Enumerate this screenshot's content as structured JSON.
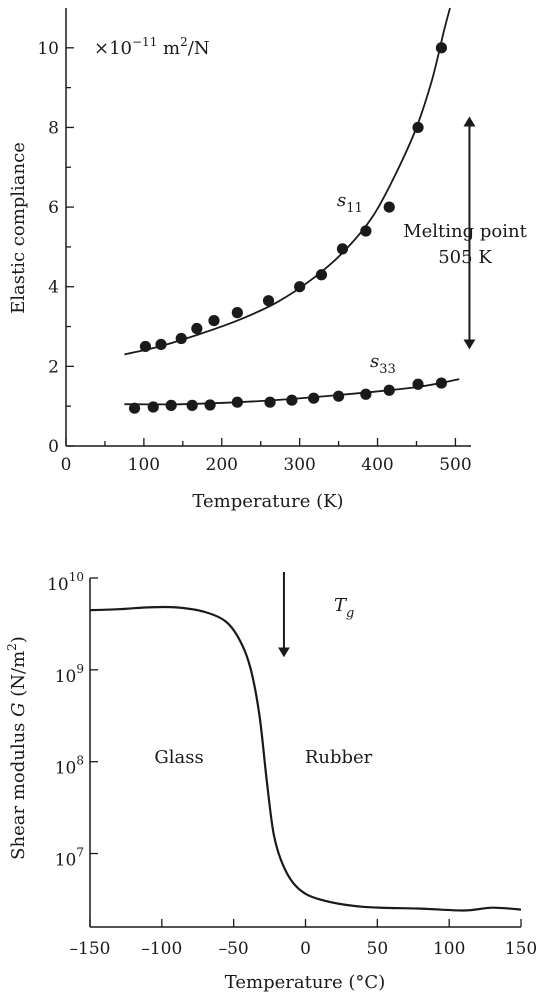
{
  "chart_data": [
    {
      "type": "scatter",
      "title": "",
      "xlabel": "Temperature (K)",
      "ylabel": "Elastic compliance",
      "xlim": [
        0,
        520
      ],
      "ylim": [
        0,
        11
      ],
      "xticks": [
        0,
        100,
        200,
        300,
        400,
        500
      ],
      "xtick_labels": [
        "0",
        "100",
        "200",
        "300",
        "400",
        "500"
      ],
      "yticks": [
        0,
        2,
        4,
        6,
        8,
        10
      ],
      "ytick_labels": [
        "0",
        "2",
        "4",
        "6",
        "8",
        "10"
      ],
      "units_note": {
        "prefix": "×10",
        "exp": "−11",
        "unit": " m",
        "unit_exp": "2",
        "suffix": "/N"
      },
      "series": [
        {
          "name": "s11",
          "label_base": "s",
          "label_sub": "11",
          "points": [
            [
              102,
              2.5
            ],
            [
              122,
              2.55
            ],
            [
              148,
              2.7
            ],
            [
              168,
              2.95
            ],
            [
              190,
              3.15
            ],
            [
              220,
              3.35
            ],
            [
              260,
              3.65
            ],
            [
              300,
              4.0
            ],
            [
              328,
              4.3
            ],
            [
              355,
              4.95
            ],
            [
              385,
              5.4
            ],
            [
              415,
              6.0
            ],
            [
              452,
              8.0
            ],
            [
              482,
              10.0
            ]
          ],
          "curve": [
            [
              75,
              2.3
            ],
            [
              120,
              2.5
            ],
            [
              170,
              2.8
            ],
            [
              220,
              3.15
            ],
            [
              270,
              3.6
            ],
            [
              320,
              4.25
            ],
            [
              360,
              4.95
            ],
            [
              395,
              5.8
            ],
            [
              425,
              6.9
            ],
            [
              450,
              8.0
            ],
            [
              470,
              9.2
            ],
            [
              485,
              10.4
            ],
            [
              493,
              11.0
            ]
          ]
        },
        {
          "name": "s33",
          "label_base": "s",
          "label_sub": "33",
          "points": [
            [
              88,
              0.95
            ],
            [
              112,
              0.98
            ],
            [
              135,
              1.02
            ],
            [
              162,
              1.02
            ],
            [
              185,
              1.03
            ],
            [
              220,
              1.1
            ],
            [
              262,
              1.1
            ],
            [
              290,
              1.15
            ],
            [
              318,
              1.2
            ],
            [
              350,
              1.25
            ],
            [
              385,
              1.3
            ],
            [
              415,
              1.4
            ],
            [
              452,
              1.55
            ],
            [
              482,
              1.58
            ]
          ],
          "curve": [
            [
              75,
              1.05
            ],
            [
              150,
              1.05
            ],
            [
              250,
              1.13
            ],
            [
              350,
              1.28
            ],
            [
              450,
              1.48
            ],
            [
              505,
              1.68
            ]
          ]
        }
      ],
      "annotation": {
        "line1": "Melting point",
        "line2": "505 K",
        "arrow_x": 518,
        "arrow_y_top": 8.4,
        "arrow_y_bottom": 2.3
      },
      "grid": false,
      "legend": "none"
    },
    {
      "type": "line",
      "title": "",
      "xlabel": "Temperature (°C)",
      "ylabel_text": "Shear modulus ",
      "ylabel_var": "G",
      "ylabel_unit": " (N/m",
      "ylabel_unit_exp": "2",
      "ylabel_close": ")",
      "xlim": [
        -150,
        150
      ],
      "ylim_log10": [
        6.2,
        10
      ],
      "log_scale_y": true,
      "xticks": [
        -150,
        -100,
        -50,
        0,
        50,
        100,
        150
      ],
      "xtick_labels": [
        "–150",
        "–100",
        "–50",
        "0",
        "50",
        "100",
        "150"
      ],
      "yticks_log10": [
        7,
        8,
        9,
        10
      ],
      "ytick_labels": [
        {
          "base": "10",
          "exp": "7"
        },
        {
          "base": "10",
          "exp": "8"
        },
        {
          "base": "10",
          "exp": "9"
        },
        {
          "base": "10",
          "exp": "10"
        }
      ],
      "series": [
        {
          "points": [
            [
              -150,
              9.65
            ],
            [
              -130,
              9.66
            ],
            [
              -110,
              9.68
            ],
            [
              -90,
              9.68
            ],
            [
              -70,
              9.63
            ],
            [
              -55,
              9.52
            ],
            [
              -45,
              9.3
            ],
            [
              -38,
              9.0
            ],
            [
              -32,
              8.5
            ],
            [
              -27,
              7.8
            ],
            [
              -22,
              7.2
            ],
            [
              -15,
              6.85
            ],
            [
              -5,
              6.62
            ],
            [
              10,
              6.5
            ],
            [
              40,
              6.42
            ],
            [
              80,
              6.4
            ],
            [
              110,
              6.38
            ],
            [
              130,
              6.41
            ],
            [
              150,
              6.39
            ]
          ]
        }
      ],
      "annotation": {
        "label_base": "T",
        "label_sub": "g",
        "arrow_x": -15,
        "arrow_y_top": 10.0,
        "arrow_y_bottom": 9.3
      },
      "region_labels": [
        {
          "text": "Glass",
          "x": -88,
          "y": 8.05
        },
        {
          "text": "Rubber",
          "x": 23,
          "y": 8.05
        }
      ],
      "grid": false,
      "legend": "none"
    }
  ]
}
